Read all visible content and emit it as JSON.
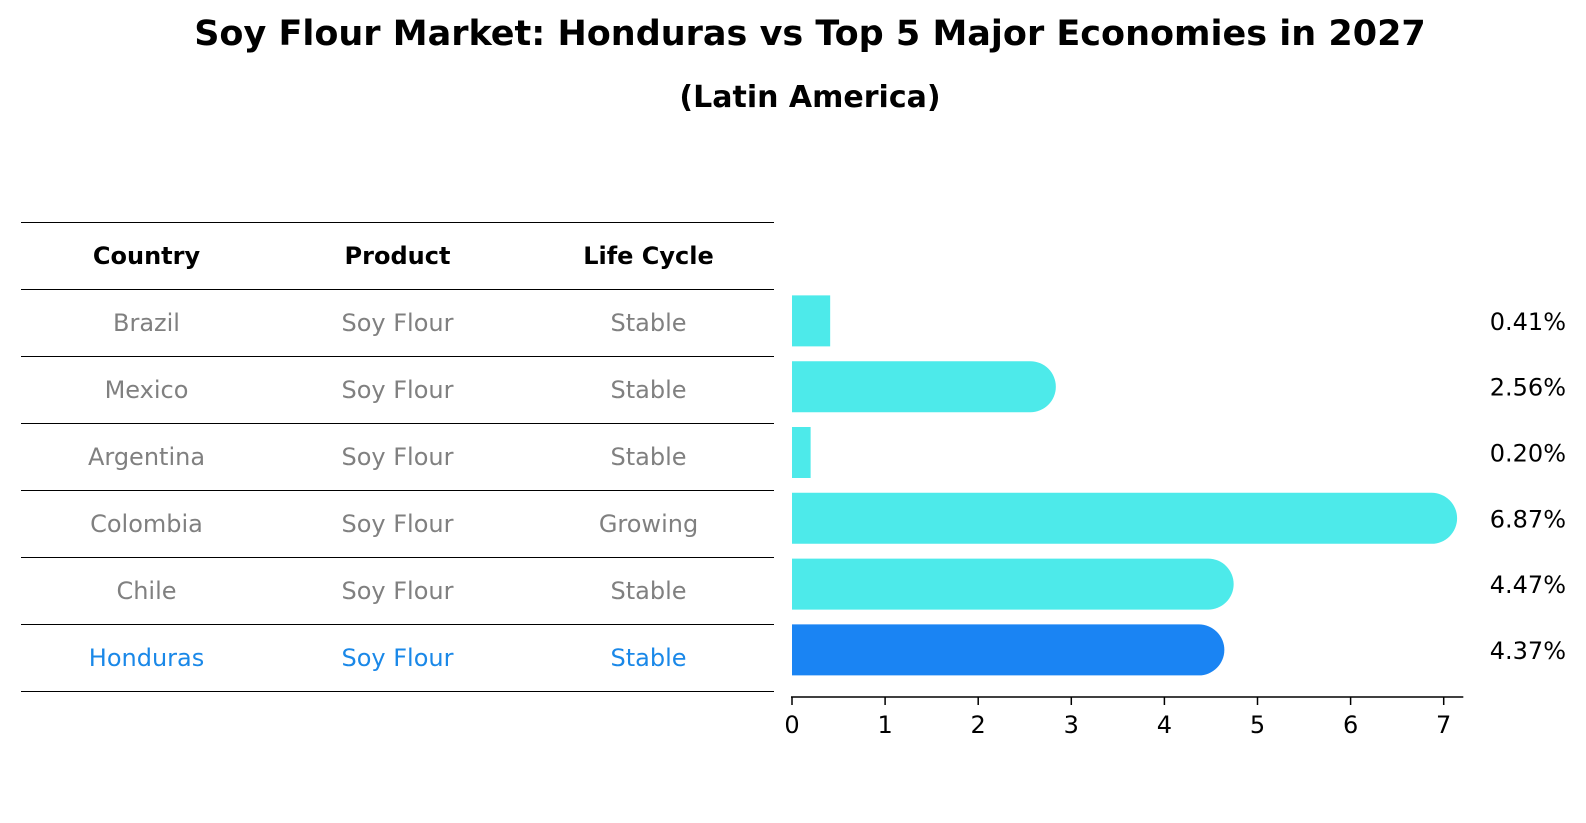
{
  "title": "Soy Flour Market: Honduras vs Top 5 Major Economies in 2027",
  "subtitle": "(Latin America)",
  "table": {
    "headers": [
      "Country",
      "Product",
      "Life Cycle"
    ],
    "rows": [
      {
        "country": "Brazil",
        "product": "Soy Flour",
        "life_cycle": "Stable"
      },
      {
        "country": "Mexico",
        "product": "Soy Flour",
        "life_cycle": "Stable"
      },
      {
        "country": "Argentina",
        "product": "Soy Flour",
        "life_cycle": "Stable"
      },
      {
        "country": "Colombia",
        "product": "Soy Flour",
        "life_cycle": "Growing"
      },
      {
        "country": "Chile",
        "product": "Soy Flour",
        "life_cycle": "Stable"
      },
      {
        "country": "Honduras",
        "product": "Soy Flour",
        "life_cycle": "Stable"
      }
    ]
  },
  "chart_data": {
    "type": "bar",
    "orientation": "horizontal",
    "categories": [
      "Brazil",
      "Mexico",
      "Argentina",
      "Colombia",
      "Chile",
      "Honduras"
    ],
    "values": [
      0.41,
      2.56,
      0.2,
      6.87,
      4.47,
      4.37
    ],
    "value_labels": [
      "0.41%",
      "2.56%",
      "0.20%",
      "6.87%",
      "4.47%",
      "4.37%"
    ],
    "highlight": "Honduras",
    "xlim": [
      0,
      7.2
    ],
    "xticks": [
      "0",
      "1",
      "2",
      "3",
      "4",
      "5",
      "6",
      "7"
    ],
    "grid": false,
    "colors": {
      "default": "#4deaea",
      "highlight": "#1a84f3",
      "text_muted": "#808080",
      "text_highlight": "#1a88e8"
    }
  }
}
